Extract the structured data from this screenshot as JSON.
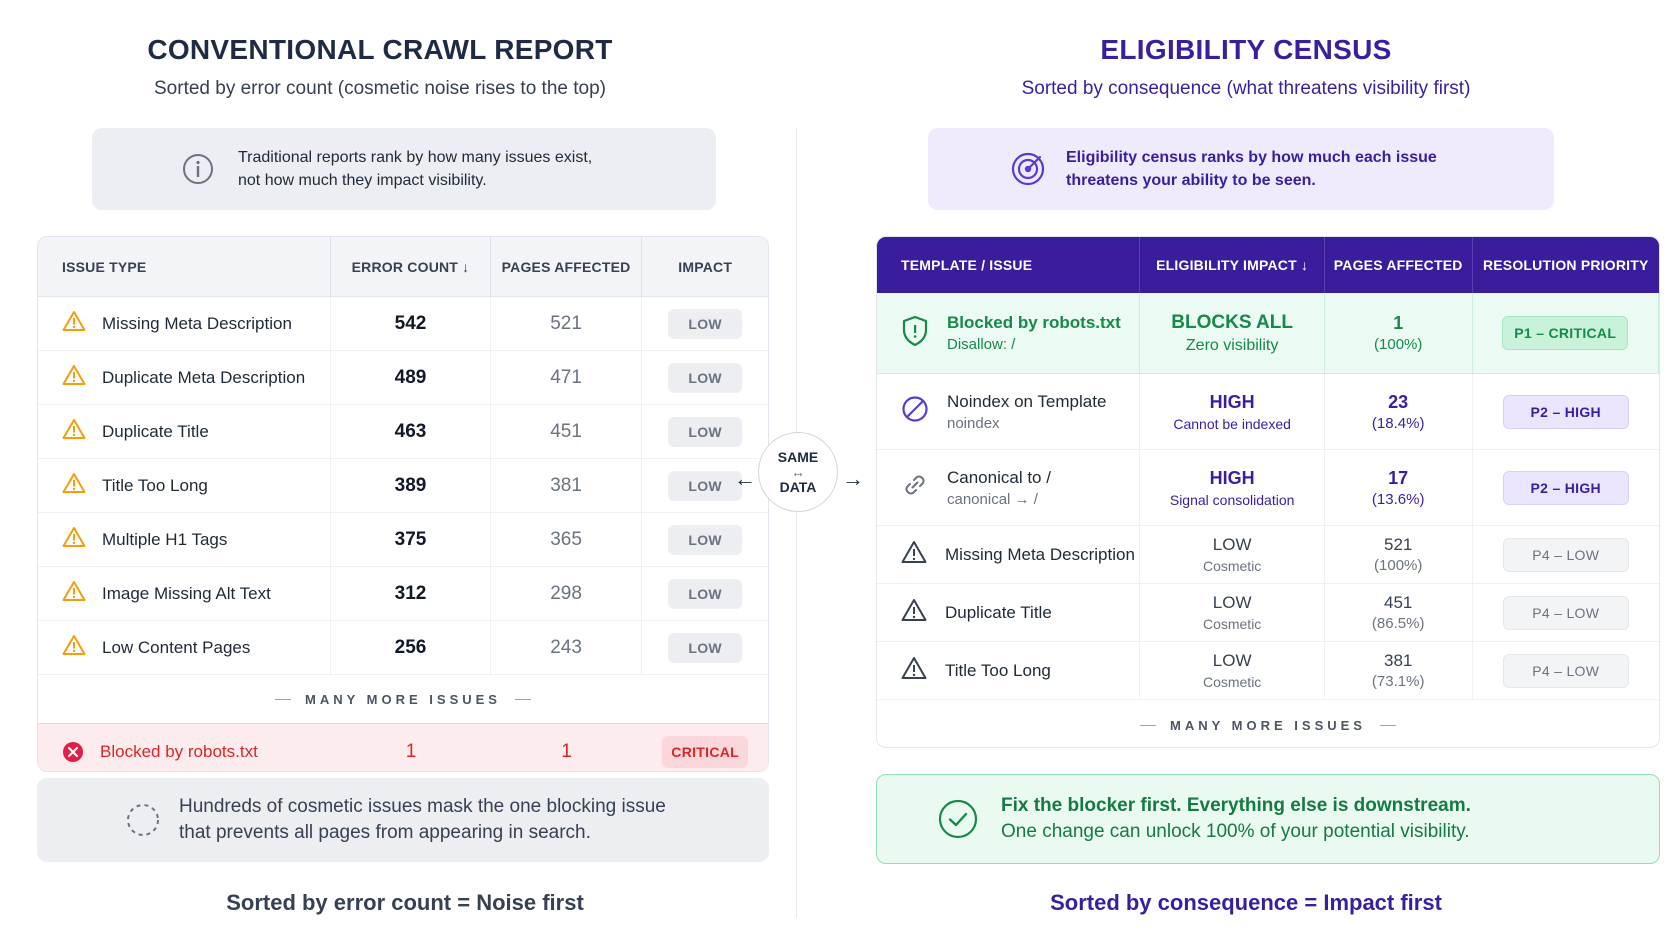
{
  "left": {
    "title": "CONVENTIONAL CRAWL REPORT",
    "subtitle": "Sorted by error count (cosmetic noise rises to the top)",
    "note_line1": "Traditional reports rank by how many issues exist,",
    "note_line2": "not how much they impact visibility.",
    "headers": [
      "ISSUE TYPE",
      "ERROR COUNT ↓",
      "PAGES AFFECTED",
      "IMPACT"
    ],
    "rows": [
      {
        "issue": "Missing Meta Description",
        "count": "542",
        "pages": "521",
        "impact": "LOW"
      },
      {
        "issue": "Duplicate Meta Description",
        "count": "489",
        "pages": "471",
        "impact": "LOW"
      },
      {
        "issue": "Duplicate Title",
        "count": "463",
        "pages": "451",
        "impact": "LOW"
      },
      {
        "issue": "Title Too Long",
        "count": "389",
        "pages": "381",
        "impact": "LOW"
      },
      {
        "issue": "Multiple H1 Tags",
        "count": "375",
        "pages": "365",
        "impact": "LOW"
      },
      {
        "issue": "Image Missing Alt Text",
        "count": "312",
        "pages": "298",
        "impact": "LOW"
      },
      {
        "issue": "Low Content Pages",
        "count": "256",
        "pages": "243",
        "impact": "LOW"
      }
    ],
    "more": "MANY MORE ISSUES",
    "critical": {
      "issue": "Blocked by robots.txt",
      "count": "1",
      "pages": "1",
      "impact": "CRITICAL"
    },
    "callout_line1": "Hundreds of cosmetic issues mask the one blocking issue",
    "callout_line2": "that prevents all pages from appearing in search.",
    "footer": "Sorted by error count = Noise first"
  },
  "center": {
    "line1": "SAME",
    "line2": "DATA"
  },
  "right": {
    "title": "ELIGIBILITY CENSUS",
    "subtitle": "Sorted by consequence (what threatens visibility first)",
    "note_line1": "Eligibility census ranks by how much each issue",
    "note_line2": "threatens your ability to be seen.",
    "headers": [
      "TEMPLATE / ISSUE",
      "ELIGIBILITY IMPACT ↓",
      "PAGES AFFECTED",
      "RESOLUTION PRIORITY"
    ],
    "rows": [
      {
        "tier": "p1",
        "icon": "shield-icon",
        "issue": "Blocked by robots.txt",
        "sub": "Disallow: /",
        "impact": "BLOCKS ALL",
        "impact_sub": "Zero visibility",
        "pages": "1",
        "pct": "(100%)",
        "priority": "P1 – CRITICAL"
      },
      {
        "tier": "p2",
        "icon": "ban-icon",
        "issue": "Noindex on Template",
        "sub": "noindex",
        "impact": "HIGH",
        "impact_sub": "Cannot be indexed",
        "pages": "23",
        "pct": "(18.4%)",
        "priority": "P2 – HIGH"
      },
      {
        "tier": "p2",
        "icon": "link-icon",
        "issue": "Canonical to /",
        "sub": "canonical → /",
        "impact": "HIGH",
        "impact_sub": "Signal consolidation",
        "pages": "17",
        "pct": "(13.6%)",
        "priority": "P2 – HIGH"
      },
      {
        "tier": "p4",
        "icon": "warning-icon",
        "issue": "Missing Meta Description",
        "sub": "",
        "impact": "LOW",
        "impact_sub": "Cosmetic",
        "pages": "521",
        "pct": "(100%)",
        "priority": "P4 – LOW"
      },
      {
        "tier": "p4",
        "icon": "warning-icon",
        "issue": "Duplicate Title",
        "sub": "",
        "impact": "LOW",
        "impact_sub": "Cosmetic",
        "pages": "451",
        "pct": "(86.5%)",
        "priority": "P4 – LOW"
      },
      {
        "tier": "p4",
        "icon": "warning-icon",
        "issue": "Title Too Long",
        "sub": "",
        "impact": "LOW",
        "impact_sub": "Cosmetic",
        "pages": "381",
        "pct": "(73.1%)",
        "priority": "P4 – LOW"
      }
    ],
    "more": "MANY MORE ISSUES",
    "callout_line1": "Fix the blocker first. Everything else is downstream.",
    "callout_line2": "One change can unlock 100% of your potential visibility.",
    "footer": "Sorted by consequence = Impact first"
  },
  "colors": {
    "purple": "#3a1d9c",
    "green": "#16894b",
    "red": "#dc2626",
    "warning_orange": "#f59e0b"
  }
}
